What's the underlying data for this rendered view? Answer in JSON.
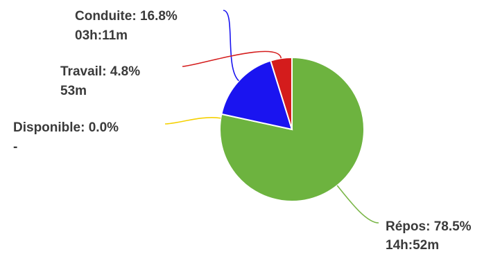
{
  "chart_data": {
    "type": "pie",
    "slices": [
      {
        "label": "Répos",
        "percent_text": "78.5%",
        "value": 78.5,
        "duration": "14h:52m",
        "color": "#6db33f"
      },
      {
        "label": "Conduite",
        "percent_text": "16.8%",
        "value": 16.8,
        "duration": "03h:11m",
        "color": "#1a14f0"
      },
      {
        "label": "Travail",
        "percent_text": "4.8%",
        "value": 4.8,
        "duration": "53m",
        "color": "#d41c1c"
      },
      {
        "label": "Disponible",
        "percent_text": "0.0%",
        "value": 0.0,
        "duration": "-",
        "color": "#f5d000"
      }
    ],
    "start_angle_deg": 0,
    "direction": "clockwise"
  }
}
